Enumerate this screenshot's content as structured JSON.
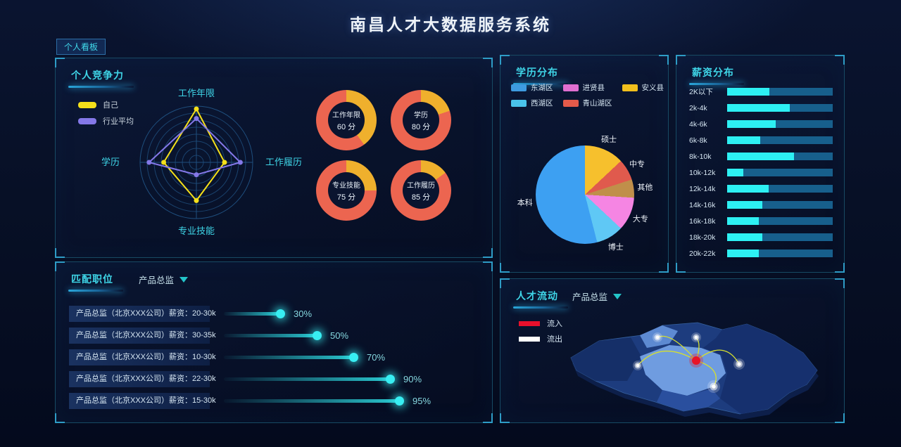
{
  "header": {
    "title": "南昌人才大数据服务系统",
    "board_tag": "个人看板"
  },
  "panels": {
    "competitiveness": {
      "title": "个人竞争力"
    },
    "match": {
      "title": "匹配职位",
      "filter": "产品总监"
    },
    "education": {
      "title": "学历分布"
    },
    "salary": {
      "title": "薪资分布"
    },
    "flow": {
      "title": "人才流动",
      "filter": "产品总监"
    }
  },
  "chart_data": [
    {
      "id": "radar",
      "type": "radar",
      "title": "个人竞争力",
      "indicators": [
        "工作年限",
        "工作履历",
        "专业技能",
        "学历"
      ],
      "max": 100,
      "series": [
        {
          "name": "自己",
          "color": "#f5e01a",
          "values": [
            95,
            50,
            68,
            58
          ]
        },
        {
          "name": "行业平均",
          "color": "#8478e8",
          "values": [
            78,
            78,
            22,
            84
          ]
        }
      ],
      "legend_position": "left"
    },
    {
      "id": "donuts",
      "type": "pie",
      "unit": "分",
      "colors": {
        "main": "#ec6550",
        "rest": "#efb02d"
      },
      "items": [
        {
          "label": "工作年限",
          "score": 60,
          "score_label": "60 分"
        },
        {
          "label": "学历",
          "score": 80,
          "score_label": "80 分"
        },
        {
          "label": "专业技能",
          "score": 75,
          "score_label": "75 分"
        },
        {
          "label": "工作履历",
          "score": 85,
          "score_label": "85 分"
        }
      ]
    },
    {
      "id": "match_progress",
      "type": "bar",
      "title": "匹配职位",
      "rows": [
        {
          "job": "产品总监（北京XXX公司）",
          "salary": "薪资：20-30k",
          "percent": 30,
          "percent_label": "30%"
        },
        {
          "job": "产品总监（北京XXX公司）",
          "salary": "薪资：30-35k",
          "percent": 50,
          "percent_label": "50%"
        },
        {
          "job": "产品总监（北京XXX公司）",
          "salary": "薪资：10-30k",
          "percent": 70,
          "percent_label": "70%"
        },
        {
          "job": "产品总监（北京XXX公司）",
          "salary": "薪资：22-30k",
          "percent": 90,
          "percent_label": "90%"
        },
        {
          "job": "产品总监（北京XXX公司）",
          "salary": "薪资：15-30k",
          "percent": 95,
          "percent_label": "95%"
        }
      ]
    },
    {
      "id": "education_pie",
      "type": "pie",
      "title": "学历分布",
      "legend": [
        {
          "label": "东湖区",
          "color": "#3e9be0"
        },
        {
          "label": "西湖区",
          "color": "#49c3ea"
        },
        {
          "label": "进贤县",
          "color": "#e06fd0"
        },
        {
          "label": "青山湖区",
          "color": "#e45a4a"
        },
        {
          "label": "安义县",
          "color": "#f2c01c"
        }
      ],
      "slices": [
        {
          "label": "硕士",
          "value": 13,
          "color": "#f6c02d"
        },
        {
          "label": "中专",
          "value": 7,
          "color": "#e05a4d"
        },
        {
          "label": "其他",
          "value": 6,
          "color": "#c08f4a"
        },
        {
          "label": "大专",
          "value": 11,
          "color": "#f585e3"
        },
        {
          "label": "博士",
          "value": 9,
          "color": "#5fc8f5"
        },
        {
          "label": "本科",
          "value": 54,
          "color": "#3da0f2"
        }
      ]
    },
    {
      "id": "salary_bars",
      "type": "bar",
      "title": "薪资分布",
      "categories": [
        "2K以下",
        "2k-4k",
        "4k-6k",
        "6k-8k",
        "8k-10k",
        "10k-12k",
        "12k-14k",
        "14k-16k",
        "16k-18k",
        "18k-20k",
        "20k-22k"
      ],
      "values": [
        40,
        59,
        46,
        31,
        63,
        15,
        39,
        33,
        30,
        33,
        30
      ],
      "max": 100,
      "colors": {
        "fill": "#2df0f3",
        "track": "#175f8c"
      }
    },
    {
      "id": "talent_flow",
      "type": "map",
      "title": "人才流动",
      "legend": [
        {
          "label": "流入",
          "color": "#e8102c"
        },
        {
          "label": "流出",
          "color": "#ffffff"
        }
      ]
    }
  ]
}
